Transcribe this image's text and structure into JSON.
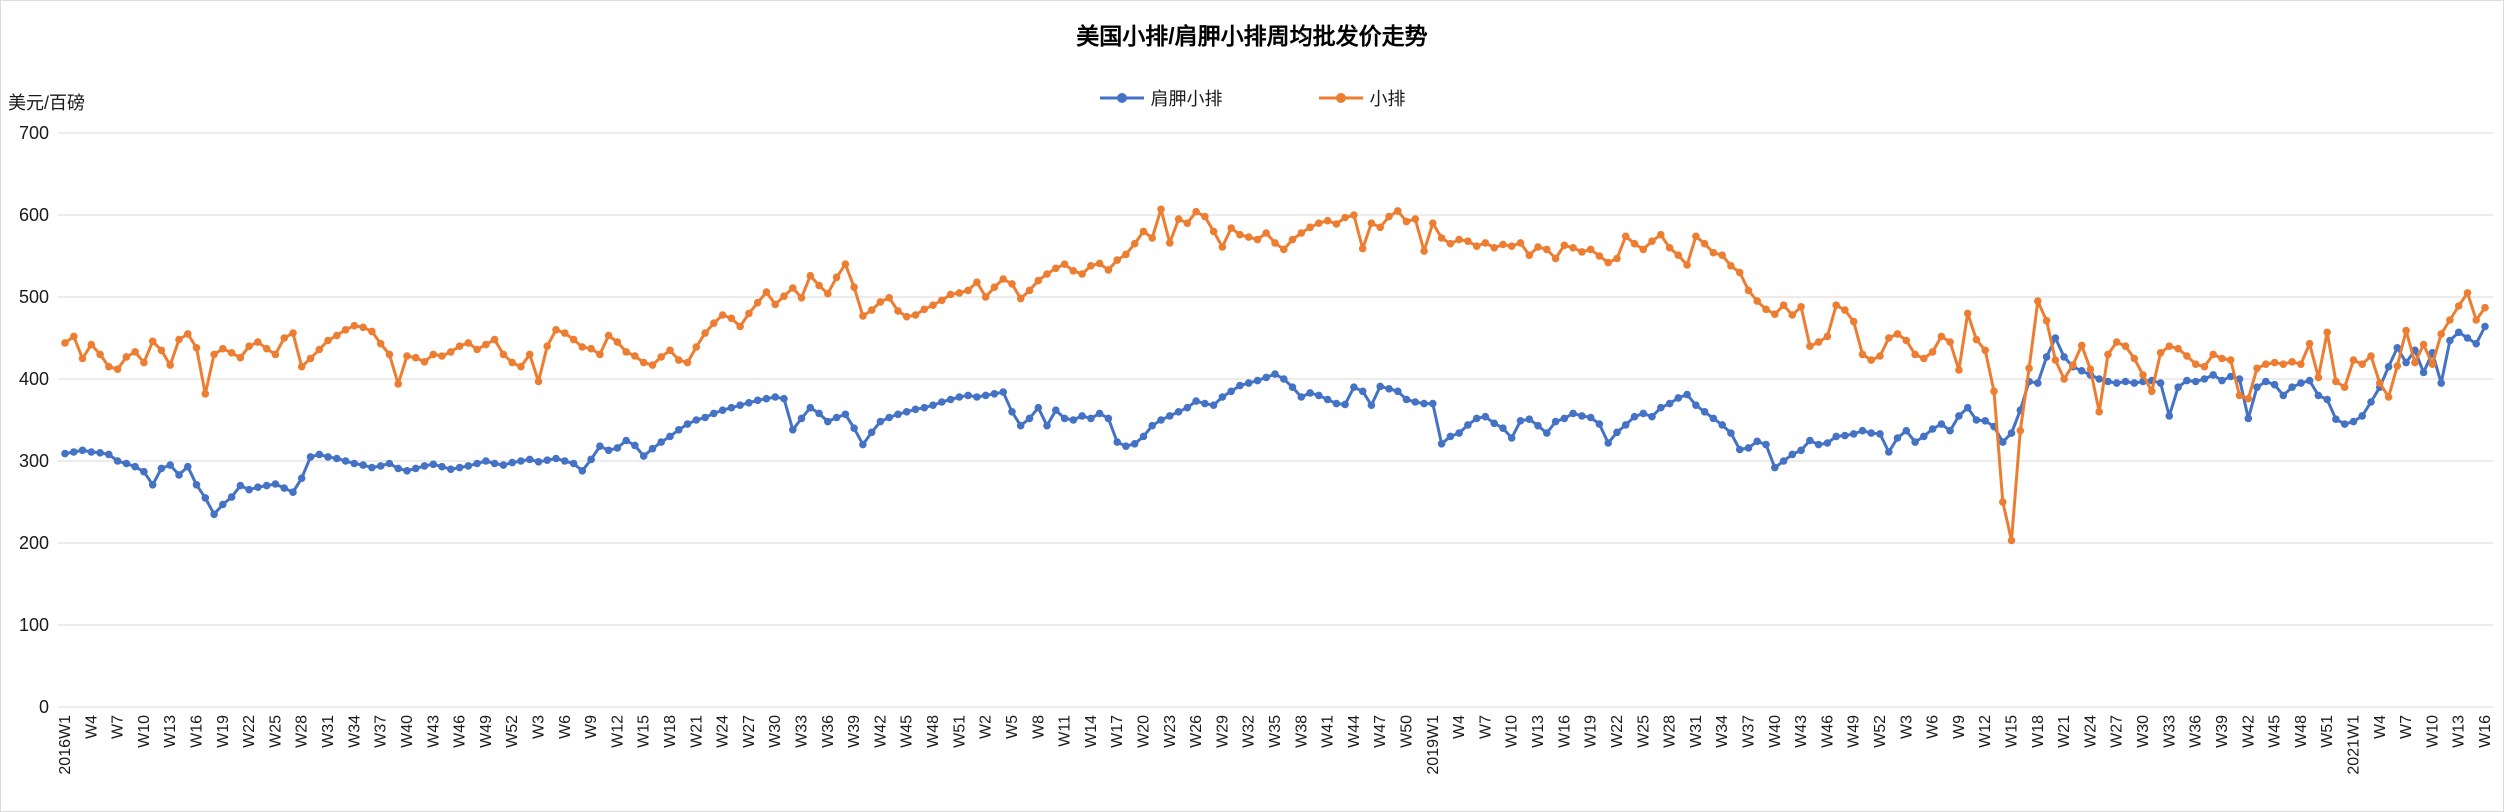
{
  "window": {
    "background": "#ffffff",
    "border_color": "#dcdcdc",
    "grid_color": "#d9d9d9",
    "text_color": "#1a1a1a"
  },
  "chart_data": {
    "type": "line",
    "title": "美国小排/肩胛小排周均批发价走势",
    "ylabel": "美元/百磅",
    "xlabel": "",
    "ylim": [
      0,
      700
    ],
    "y_tick_step": 100,
    "y_ticks": [
      0,
      100,
      200,
      300,
      400,
      500,
      600,
      700
    ],
    "grid": "horizontal",
    "legend_position": "top-center",
    "markers": true,
    "x_tick_every": 3,
    "x_tick_labels": [
      "2016W1",
      "W4",
      "W7",
      "W10",
      "W13",
      "W16",
      "W19",
      "W22",
      "W25",
      "W28",
      "W31",
      "W34",
      "W37",
      "W40",
      "W43",
      "W46",
      "W49",
      "W52",
      "W3",
      "W6",
      "W9",
      "W12",
      "W15",
      "W18",
      "W21",
      "W24",
      "W27",
      "W30",
      "W33",
      "W36",
      "W39",
      "W42",
      "W45",
      "W48",
      "W51",
      "W2",
      "W5",
      "W8",
      "W11",
      "W14",
      "W17",
      "W20",
      "W23",
      "W26",
      "W29",
      "W32",
      "W35",
      "W38",
      "W41",
      "W44",
      "W47",
      "W50",
      "2019W1",
      "W4",
      "W7",
      "W10",
      "W13",
      "W16",
      "W19",
      "W22",
      "W25",
      "W28",
      "W31",
      "W34",
      "W37",
      "W40",
      "W43",
      "W46",
      "W49",
      "W52",
      "W3",
      "W6",
      "W9",
      "W12",
      "W15",
      "W18",
      "W21",
      "W24",
      "W27",
      "W30",
      "W33",
      "W36",
      "W39",
      "W42",
      "W45",
      "W48",
      "W51",
      "2021W1",
      "W4",
      "W7",
      "W10",
      "W13",
      "W16"
    ],
    "series": [
      {
        "name": "肩胛小排",
        "color": "#4472C4",
        "values": [
          309,
          311,
          313,
          311,
          310,
          308,
          300,
          297,
          293,
          287,
          271,
          291,
          295,
          283,
          293,
          271,
          255,
          235,
          247,
          256,
          270,
          265,
          268,
          270,
          272,
          267,
          262,
          279,
          305,
          308,
          305,
          303,
          300,
          297,
          295,
          292,
          294,
          297,
          291,
          288,
          291,
          294,
          296,
          293,
          290,
          292,
          294,
          297,
          300,
          297,
          295,
          298,
          300,
          302,
          299,
          301,
          303,
          300,
          297,
          288,
          302,
          318,
          313,
          316,
          325,
          319,
          306,
          315,
          323,
          330,
          338,
          345,
          350,
          353,
          358,
          362,
          365,
          368,
          371,
          374,
          376,
          378,
          376,
          338,
          352,
          365,
          358,
          348,
          353,
          357,
          340,
          320,
          335,
          348,
          353,
          357,
          360,
          363,
          365,
          368,
          372,
          375,
          378,
          380,
          378,
          380,
          382,
          384,
          360,
          343,
          352,
          365,
          343,
          362,
          352,
          350,
          355,
          352,
          358,
          352,
          323,
          318,
          321,
          330,
          343,
          350,
          355,
          360,
          365,
          373,
          370,
          368,
          378,
          385,
          392,
          395,
          398,
          402,
          406,
          400,
          390,
          378,
          383,
          380,
          375,
          370,
          369,
          390,
          385,
          368,
          391,
          388,
          385,
          375,
          372,
          370,
          370,
          321,
          330,
          334,
          344,
          352,
          354,
          346,
          340,
          328,
          349,
          351,
          343,
          334,
          348,
          352,
          358,
          355,
          353,
          345,
          322,
          335,
          344,
          354,
          358,
          354,
          365,
          370,
          377,
          381,
          368,
          360,
          352,
          344,
          334,
          314,
          316,
          324,
          320,
          292,
          300,
          308,
          313,
          325,
          320,
          322,
          330,
          331,
          333,
          337,
          334,
          333,
          311,
          328,
          337,
          323,
          330,
          339,
          345,
          337,
          355,
          365,
          350,
          349,
          342,
          323,
          334,
          362,
          397,
          395,
          427,
          450,
          427,
          415,
          410,
          405,
          400,
          397,
          395,
          397,
          395,
          397,
          398,
          395,
          355,
          390,
          398,
          397,
          400,
          405,
          398,
          403,
          400,
          352,
          390,
          397,
          393,
          380,
          390,
          395,
          398,
          380,
          375,
          351,
          345,
          348,
          355,
          372,
          390,
          415,
          438,
          420,
          435,
          408,
          432,
          395,
          447,
          457,
          450,
          443,
          464
        ]
      },
      {
        "name": "小排",
        "color": "#ED7D31",
        "values": [
          444,
          452,
          425,
          442,
          430,
          415,
          412,
          427,
          433,
          420,
          446,
          435,
          417,
          448,
          455,
          438,
          382,
          430,
          437,
          432,
          426,
          440,
          445,
          437,
          430,
          450,
          456,
          415,
          425,
          436,
          447,
          453,
          460,
          465,
          463,
          458,
          443,
          430,
          394,
          428,
          426,
          421,
          430,
          428,
          433,
          440,
          444,
          436,
          442,
          448,
          430,
          420,
          415,
          430,
          397,
          440,
          460,
          456,
          448,
          439,
          437,
          430,
          453,
          445,
          433,
          428,
          420,
          417,
          427,
          435,
          423,
          420,
          439,
          456,
          468,
          478,
          474,
          464,
          480,
          493,
          506,
          491,
          501,
          511,
          499,
          526,
          514,
          504,
          524,
          540,
          512,
          477,
          484,
          494,
          499,
          483,
          476,
          478,
          485,
          490,
          496,
          503,
          505,
          508,
          518,
          500,
          512,
          522,
          516,
          498,
          508,
          520,
          528,
          535,
          540,
          532,
          528,
          538,
          541,
          533,
          545,
          552,
          565,
          580,
          572,
          607,
          566,
          595,
          590,
          604,
          598,
          580,
          561,
          584,
          576,
          573,
          570,
          578,
          566,
          558,
          570,
          578,
          585,
          590,
          593,
          589,
          597,
          600,
          559,
          590,
          585,
          598,
          605,
          592,
          595,
          556,
          590,
          572,
          565,
          570,
          568,
          562,
          566,
          560,
          564,
          562,
          566,
          551,
          561,
          558,
          547,
          563,
          560,
          555,
          558,
          550,
          542,
          547,
          574,
          565,
          558,
          568,
          576,
          560,
          551,
          539,
          574,
          565,
          554,
          551,
          538,
          530,
          508,
          495,
          485,
          479,
          490,
          478,
          488,
          440,
          445,
          452,
          490,
          484,
          470,
          430,
          423,
          428,
          450,
          455,
          447,
          430,
          425,
          433,
          452,
          445,
          411,
          480,
          448,
          435,
          385,
          250,
          203,
          337,
          413,
          495,
          471,
          423,
          400,
          417,
          441,
          412,
          360,
          430,
          445,
          440,
          425,
          405,
          385,
          432,
          440,
          437,
          428,
          418,
          415,
          430,
          425,
          423,
          380,
          376,
          413,
          418,
          420,
          418,
          421,
          418,
          443,
          402,
          457,
          397,
          390,
          423,
          418,
          428,
          395,
          378,
          416,
          459,
          420,
          442,
          418,
          455,
          472,
          489,
          505,
          472,
          487
        ]
      }
    ]
  }
}
